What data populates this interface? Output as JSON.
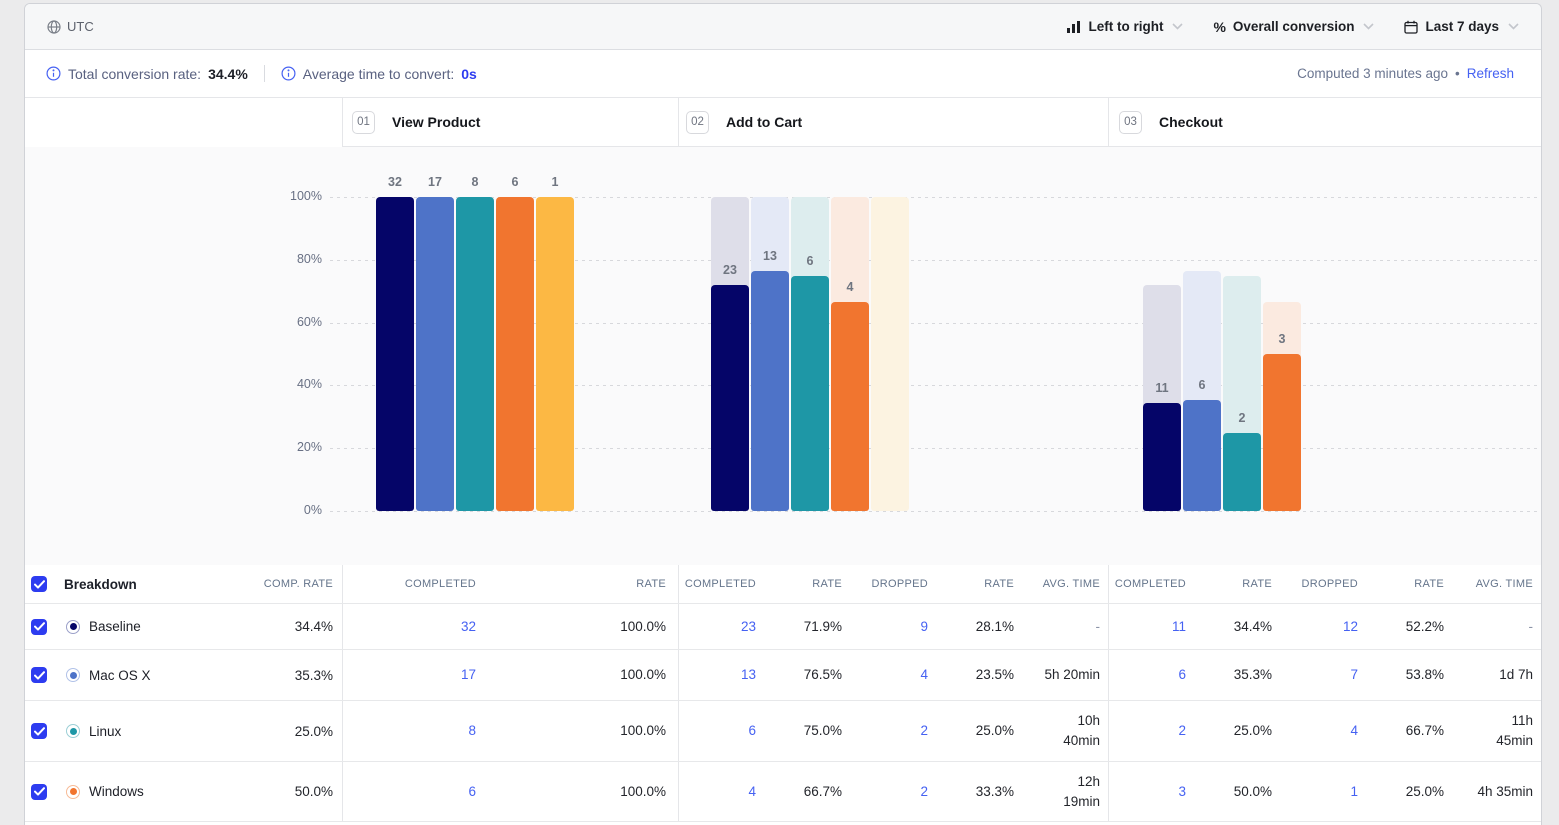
{
  "colors": {
    "accent": "#2d3cf0",
    "link": "#4561f2",
    "series": [
      {
        "name": "Baseline",
        "solid": "#050568",
        "light": "#dedee9",
        "ring": "#9ba0c9"
      },
      {
        "name": "Mac OS X",
        "solid": "#4e73c8",
        "light": "#e4e9f6",
        "ring": "#b1c2e8"
      },
      {
        "name": "Linux",
        "solid": "#1e97a6",
        "light": "#ddedee",
        "ring": "#9ccfd6"
      },
      {
        "name": "Windows",
        "solid": "#f1752f",
        "light": "#fbeae0",
        "ring": "#f7bb97"
      },
      {
        "name": "",
        "solid": "#fcb844",
        "light": "#fcf3e1",
        "ring": "#fbd9a1"
      }
    ]
  },
  "topbar": {
    "timezone": "UTC",
    "direction": "Left to right",
    "metric_prefix": "%",
    "metric": "Overall conversion",
    "date_range": "Last 7 days"
  },
  "statsbar": {
    "total_label": "Total conversion rate:",
    "total_value": "34.4%",
    "avg_label": "Average time to convert:",
    "avg_value": "0s",
    "computed": "Computed 3 minutes ago",
    "separator": "•",
    "refresh": "Refresh"
  },
  "steps": [
    {
      "num": "01",
      "label": "View Product"
    },
    {
      "num": "02",
      "label": "Add to Cart"
    },
    {
      "num": "03",
      "label": "Checkout"
    }
  ],
  "chart_data": {
    "type": "bar",
    "subtype": "funnel-steps-grouped-by-breakdown",
    "steps": [
      "View Product",
      "Add to Cart",
      "Checkout"
    ],
    "y_ticks": [
      "100%",
      "80%",
      "60%",
      "40%",
      "20%",
      "0%"
    ],
    "y_range": [
      0,
      100
    ],
    "grid": "dashed-horizontal",
    "series": [
      {
        "name": "Baseline",
        "counts": [
          32,
          23,
          11
        ],
        "rates_pct": [
          100,
          71.9,
          34.4
        ]
      },
      {
        "name": "Mac OS X",
        "counts": [
          17,
          13,
          6
        ],
        "rates_pct": [
          100,
          76.5,
          35.3
        ]
      },
      {
        "name": "Linux",
        "counts": [
          8,
          6,
          2
        ],
        "rates_pct": [
          100,
          75.0,
          25.0
        ]
      },
      {
        "name": "Windows",
        "counts": [
          6,
          4,
          3
        ],
        "rates_pct": [
          100,
          66.7,
          50.0
        ]
      },
      {
        "name": "",
        "counts": [
          1,
          null,
          null
        ],
        "rates_pct": [
          100,
          0,
          null
        ]
      }
    ]
  },
  "table": {
    "breakdown_header": "Breakdown",
    "comp_rate_header": "COMP. RATE",
    "step1_headers": [
      "COMPLETED",
      "RATE"
    ],
    "stepn_headers": [
      "COMPLETED",
      "RATE",
      "DROPPED",
      "RATE",
      "AVG. TIME"
    ],
    "rows": [
      {
        "name": "Baseline",
        "checked": true,
        "comp_rate": "34.4%",
        "steps": [
          [
            "32",
            "100.0%"
          ],
          [
            "23",
            "71.9%",
            "9",
            "28.1%",
            "-"
          ],
          [
            "11",
            "34.4%",
            "12",
            "52.2%",
            "-"
          ]
        ]
      },
      {
        "name": "Mac OS X",
        "checked": true,
        "comp_rate": "35.3%",
        "steps": [
          [
            "17",
            "100.0%"
          ],
          [
            "13",
            "76.5%",
            "4",
            "23.5%",
            "5h 20min"
          ],
          [
            "6",
            "35.3%",
            "7",
            "53.8%",
            "1d 7h"
          ]
        ]
      },
      {
        "name": "Linux",
        "checked": true,
        "comp_rate": "25.0%",
        "steps": [
          [
            "8",
            "100.0%"
          ],
          [
            "6",
            "75.0%",
            "2",
            "25.0%",
            "10h\n40min"
          ],
          [
            "2",
            "25.0%",
            "4",
            "66.7%",
            "11h\n45min"
          ]
        ]
      },
      {
        "name": "Windows",
        "checked": true,
        "comp_rate": "50.0%",
        "steps": [
          [
            "6",
            "100.0%"
          ],
          [
            "4",
            "66.7%",
            "2",
            "33.3%",
            "12h\n19min"
          ],
          [
            "3",
            "50.0%",
            "1",
            "25.0%",
            "4h 35min"
          ]
        ]
      }
    ]
  }
}
